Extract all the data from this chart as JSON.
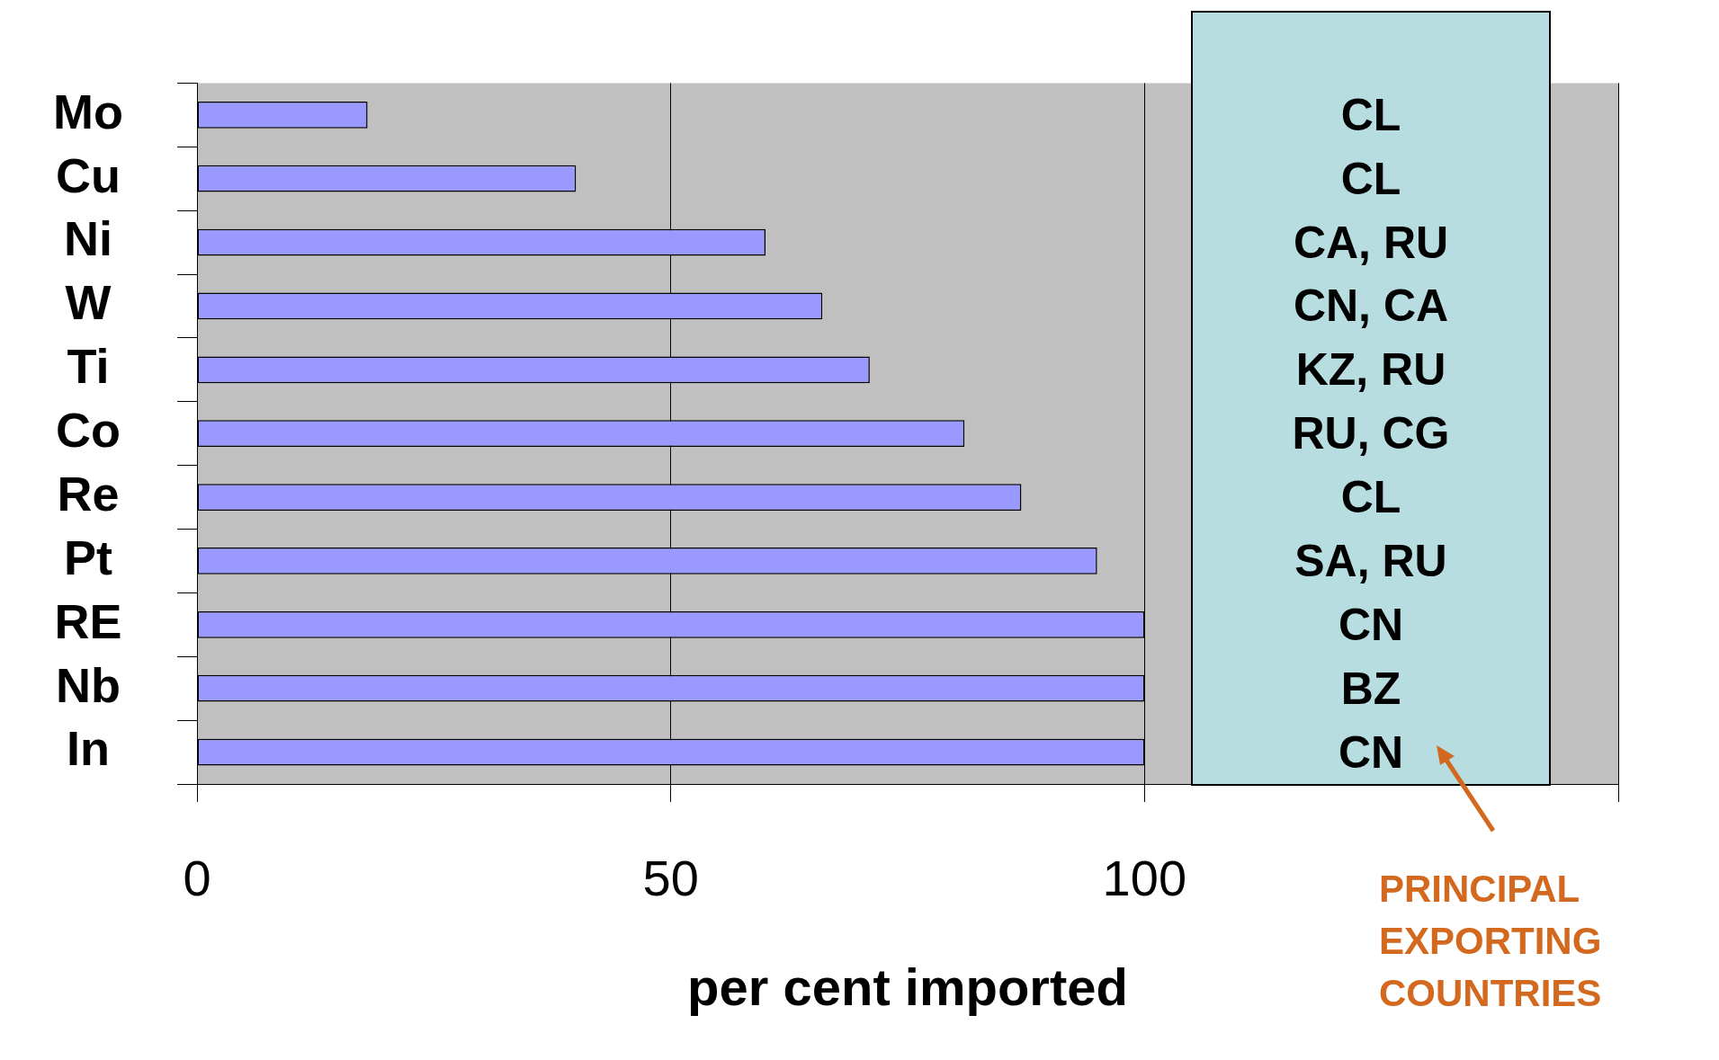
{
  "chart_data": {
    "type": "bar",
    "orientation": "horizontal",
    "xlabel": "per cent imported",
    "categories": [
      "Mo",
      "Cu",
      "Ni",
      "W",
      "Ti",
      "Co",
      "Re",
      "Pt",
      "RE",
      "Nb",
      "In"
    ],
    "values": [
      18,
      40,
      60,
      66,
      71,
      81,
      87,
      95,
      100,
      100,
      100
    ],
    "color": "#9999ff",
    "xlim": [
      0,
      150
    ],
    "xticks": [
      0,
      50,
      100,
      {
        "value": 150,
        "label": null
      }
    ],
    "grid": "x",
    "annotations": [
      "CL",
      "CL",
      "CA, RU",
      "CN, CA",
      "KZ, RU",
      "RU, CG",
      "CL",
      "SA, RU",
      "CN",
      "BZ",
      "CN",
      "PRINCIPAL EXPORTING COUNTRIES"
    ]
  }
}
